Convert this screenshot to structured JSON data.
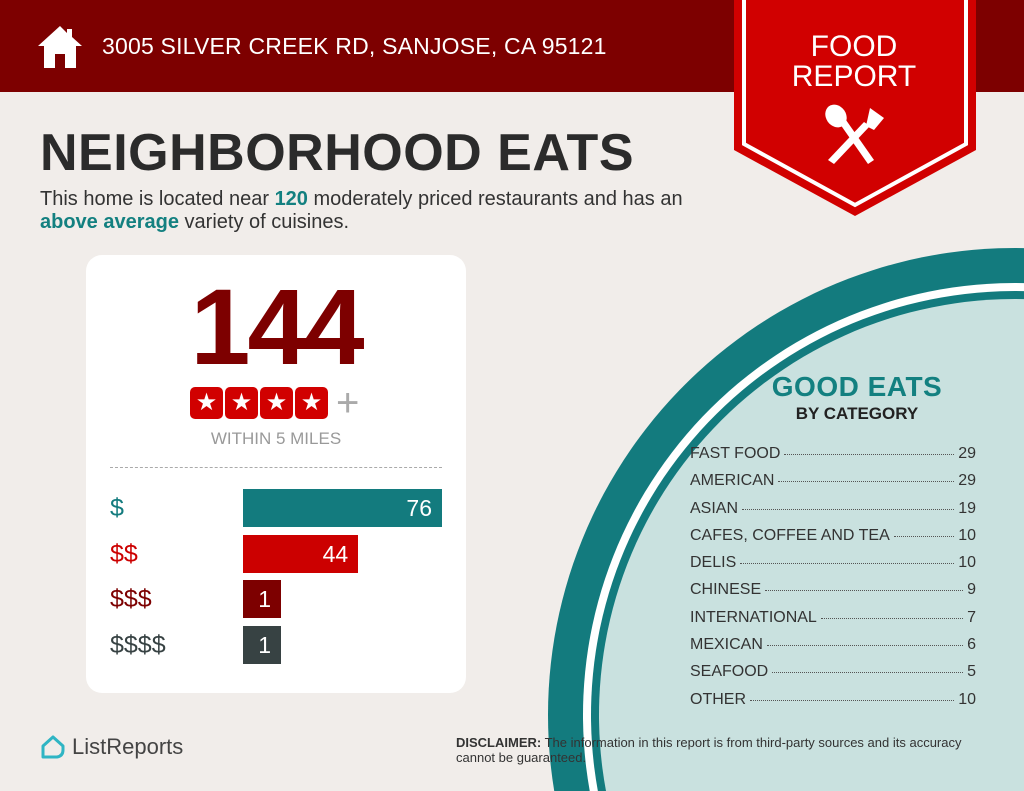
{
  "header": {
    "address": "3005 SILVER CREEK RD, SANJOSE, CA 95121",
    "badge_line1": "FOOD",
    "badge_line2": "REPORT"
  },
  "title": "NEIGHBORHOOD EATS",
  "intro": {
    "part1": "This home is located near ",
    "count": "120",
    "part2": " moderately priced restaurants and has an ",
    "variety": "above average",
    "part3": " variety of cuisines."
  },
  "summary": {
    "total": "144",
    "rating_stars": 4,
    "plus": "+",
    "within": "WITHIN 5 MILES"
  },
  "price_levels": [
    {
      "label": "$",
      "value": 76,
      "color": "#137b7e"
    },
    {
      "label": "$$",
      "value": 44,
      "color": "#cc0000"
    },
    {
      "label": "$$$",
      "value": 1,
      "color": "#7d0000"
    },
    {
      "label": "$$$$",
      "value": 1,
      "color": "#374243"
    }
  ],
  "categories": {
    "title": "GOOD EATS",
    "subtitle": "BY CATEGORY",
    "items": [
      {
        "name": "FAST FOOD",
        "count": "29"
      },
      {
        "name": "AMERICAN",
        "count": "29"
      },
      {
        "name": "ASIAN",
        "count": "19"
      },
      {
        "name": "CAFES, COFFEE AND TEA",
        "count": "10"
      },
      {
        "name": "DELIS",
        "count": "10"
      },
      {
        "name": "CHINESE",
        "count": "9"
      },
      {
        "name": "INTERNATIONAL",
        "count": "7"
      },
      {
        "name": "MEXICAN",
        "count": "6"
      },
      {
        "name": "SEAFOOD",
        "count": "5"
      },
      {
        "name": "OTHER",
        "count": "10"
      }
    ]
  },
  "footer": {
    "brand": "ListReports",
    "disclaimer_label": "DISCLAIMER:",
    "disclaimer": " The information in this report is from third-party sources and its accuracy cannot be guaranteed."
  }
}
